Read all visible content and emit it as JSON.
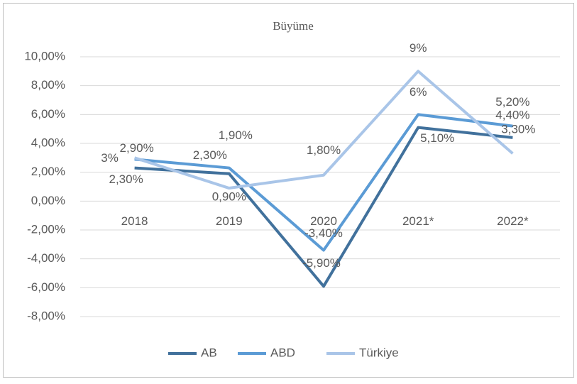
{
  "chart_data": {
    "type": "line",
    "title": "Büyüme",
    "categories": [
      "2018",
      "2019",
      "2020",
      "2021*",
      "2022*"
    ],
    "series": [
      {
        "name": "AB",
        "color": "#41719c",
        "values": [
          2.3,
          1.9,
          -5.9,
          5.1,
          4.4
        ],
        "value_labels": [
          "2,30%",
          "1,90%",
          "-5,90%",
          "5,10%",
          "4,40%"
        ]
      },
      {
        "name": "ABD",
        "color": "#5b9bd5",
        "values": [
          2.9,
          2.3,
          -3.4,
          6,
          5.2
        ],
        "value_labels": [
          "2,90%",
          "2,30%",
          "-3,40%",
          "6%",
          "5,20%"
        ]
      },
      {
        "name": "Türkiye",
        "color": "#a9c5e8",
        "values": [
          3,
          0.9,
          1.8,
          9,
          3.3
        ],
        "value_labels": [
          "3%",
          "0,90%",
          "1,80%",
          "9%",
          "3,30%"
        ]
      }
    ],
    "ylim": [
      -8,
      10
    ],
    "yticks": [
      {
        "value": -8,
        "label": "-8,00%"
      },
      {
        "value": -6,
        "label": "-6,00%"
      },
      {
        "value": -4,
        "label": "-4,00%"
      },
      {
        "value": -2,
        "label": "-2,00%"
      },
      {
        "value": 0,
        "label": "0,00%"
      },
      {
        "value": 2,
        "label": "2,00%"
      },
      {
        "value": 4,
        "label": "4,00%"
      },
      {
        "value": 6,
        "label": "6,00%"
      },
      {
        "value": 8,
        "label": "8,00%"
      },
      {
        "value": 10,
        "label": "10,00%"
      }
    ],
    "grid": true,
    "legend": "bottom"
  }
}
